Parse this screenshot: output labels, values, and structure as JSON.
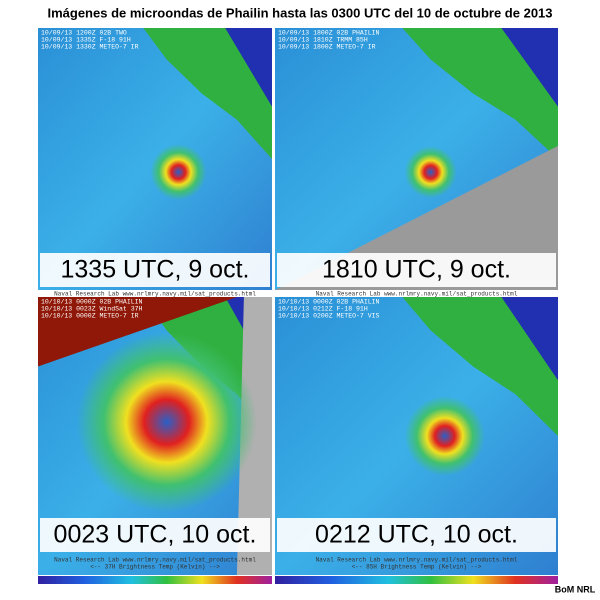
{
  "title": "Imágenes de microondas de Phailin hasta las 0300 UTC del 10 de octubre de 2013",
  "panels": [
    {
      "header": [
        "10/09/13 1200Z 02B TWO",
        "10/09/13 1335Z F-18 91H",
        "10/09/13 1330Z METEO-7 IR"
      ],
      "caption": "1335 UTC, 9 oct.",
      "footer": "Naval Research Lab  www.nrlmry.navy.mil/sat_products.html"
    },
    {
      "header": [
        "10/09/13 1800Z 02B PHAILIN",
        "10/09/13 1810Z TRMM 85H",
        "10/09/13 1800Z METEO-7 IR"
      ],
      "caption": "1810 UTC, 9 oct.",
      "footer": "Naval Research Lab  www.nrlmry.navy.mil/sat_products.html"
    },
    {
      "header": [
        "10/10/13 0000Z 02B PHAILIN",
        "10/10/13 0023Z WindSat 37H",
        "10/10/13 0000Z METEO-7 IR"
      ],
      "caption": "0023 UTC, 10 oct.",
      "footer": "Naval Research Lab  www.nrlmry.navy.mil/sat_products.html",
      "scale": "<-- 37H Brightness Temp (Kelvin) -->"
    },
    {
      "header": [
        "10/10/13 0000Z 02B PHAILIN",
        "10/10/13 0212Z F-18 91H",
        "10/10/13 0200Z METEO-7 VIS"
      ],
      "caption": "0212 UTC, 10 oct.",
      "footer": "Naval Research Lab  www.nrlmry.navy.mil/sat_products.html",
      "scale": "<-- 85H Brightness Temp (Kelvin) -->"
    }
  ],
  "credit": "BoM NRL"
}
